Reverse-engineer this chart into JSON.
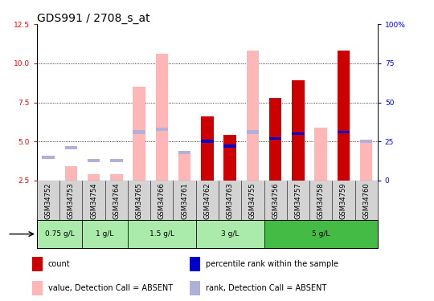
{
  "title": "GDS991 / 2708_s_at",
  "samples": [
    "GSM34752",
    "GSM34753",
    "GSM34754",
    "GSM34764",
    "GSM34765",
    "GSM34766",
    "GSM34761",
    "GSM34762",
    "GSM34763",
    "GSM34755",
    "GSM34756",
    "GSM34757",
    "GSM34758",
    "GSM34759",
    "GSM34760"
  ],
  "dose_groups": [
    {
      "label": "0.75 g/L",
      "start": 0,
      "end": 2
    },
    {
      "label": "1 g/L",
      "start": 2,
      "end": 4
    },
    {
      "label": "1.5 g/L",
      "start": 4,
      "end": 7
    },
    {
      "label": "3 g/L",
      "start": 7,
      "end": 10
    },
    {
      "label": "5 g/L",
      "start": 10,
      "end": 15
    }
  ],
  "value_absent": [
    2.3,
    3.4,
    2.9,
    2.9,
    8.5,
    10.6,
    4.3,
    null,
    null,
    10.8,
    null,
    null,
    5.9,
    null,
    4.9
  ],
  "rank_absent": [
    4.0,
    4.6,
    3.8,
    3.8,
    5.6,
    5.8,
    4.3,
    null,
    null,
    5.6,
    null,
    null,
    null,
    null,
    5.0
  ],
  "count": [
    null,
    null,
    null,
    null,
    null,
    null,
    null,
    6.6,
    5.4,
    null,
    7.8,
    8.9,
    null,
    10.8,
    null
  ],
  "percentile": [
    null,
    null,
    null,
    null,
    null,
    null,
    null,
    5.0,
    4.7,
    null,
    5.2,
    5.5,
    null,
    5.6,
    null
  ],
  "ylim_left": [
    2.5,
    12.5
  ],
  "ylim_right": [
    0,
    100
  ],
  "yticks_left": [
    2.5,
    5.0,
    7.5,
    10.0,
    12.5
  ],
  "yticks_right": [
    0,
    25,
    50,
    75,
    100
  ],
  "color_count": "#cc0000",
  "color_percentile": "#0000cc",
  "color_value_absent": "#ffb6b6",
  "color_rank_absent": "#b0b0d8",
  "bg_sample": "#d3d3d3",
  "color_dose_light": "#aaeaaa",
  "color_dose_dark": "#44bb44",
  "title_fontsize": 10,
  "tick_fontsize": 6.5,
  "legend_fontsize": 7,
  "bar_width": 0.55
}
